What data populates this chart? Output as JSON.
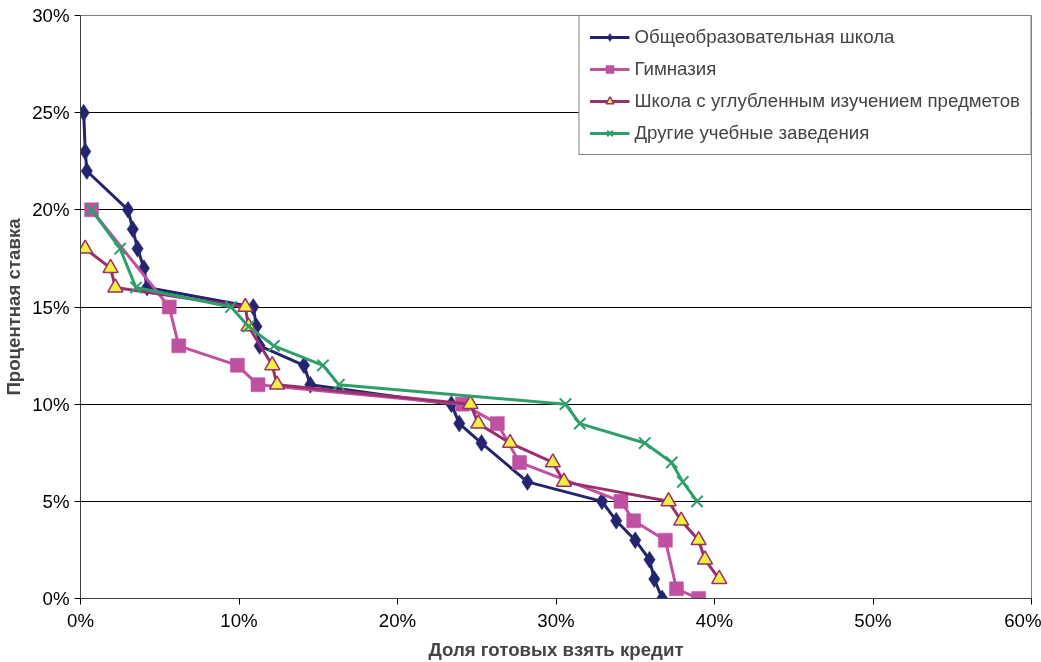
{
  "chart_data": {
    "type": "line",
    "xlabel": "Доля готовых взять кредит",
    "ylabel": "Процентная ставка",
    "xlim": [
      0,
      60
    ],
    "ylim": [
      0,
      30
    ],
    "xticks": [
      {
        "value": 0,
        "label": "0%"
      },
      {
        "value": 10,
        "label": "10%"
      },
      {
        "value": 20,
        "label": "20%"
      },
      {
        "value": 30,
        "label": "30%"
      },
      {
        "value": 40,
        "label": "40%"
      },
      {
        "value": 50,
        "label": "50%"
      },
      {
        "value": 60,
        "label": "60%"
      }
    ],
    "yticks": [
      {
        "value": 0,
        "label": "0%"
      },
      {
        "value": 5,
        "label": "5%"
      },
      {
        "value": 10,
        "label": "10%"
      },
      {
        "value": 15,
        "label": "15%"
      },
      {
        "value": 20,
        "label": "20%"
      },
      {
        "value": 25,
        "label": "25%"
      },
      {
        "value": 30,
        "label": "30%"
      }
    ],
    "grid": "y",
    "legend": "top right",
    "line_style": "solid",
    "series": [
      {
        "name": "Общеобразовательная школа",
        "color": "#25256f",
        "marker": "diamond",
        "x": [
          0.2,
          0.3,
          0.4,
          3.0,
          3.3,
          3.6,
          4.0,
          4.2,
          10.9,
          11.1,
          11.3,
          14.1,
          14.5,
          23.4,
          23.9,
          25.3,
          28.2,
          32.9,
          33.8,
          35.0,
          35.9,
          36.2,
          36.7
        ],
        "values": [
          25,
          23,
          22,
          20,
          19,
          18,
          17,
          16,
          15,
          14,
          13,
          12,
          11,
          10,
          9,
          8,
          6,
          5,
          4,
          3,
          2,
          1,
          0
        ]
      },
      {
        "name": "Гимназия",
        "color": "#c050a0",
        "marker": "square",
        "x": [
          0.7,
          5.6,
          6.2,
          9.9,
          11.2,
          24.1,
          26.3,
          27.7,
          34.1,
          34.9,
          36.9,
          37.6,
          39.0
        ],
        "values": [
          20,
          15,
          13,
          12,
          11,
          10,
          9,
          7,
          5,
          4,
          3,
          0.5,
          0
        ]
      },
      {
        "name": "Школа с углубленным изучением предметов",
        "color": "#9b2f6b",
        "marker": "triangle",
        "x": [
          0.3,
          1.9,
          2.2,
          10.4,
          10.6,
          12.1,
          12.4,
          24.6,
          25.1,
          27.1,
          29.8,
          30.5,
          37.1,
          37.9,
          39.0,
          39.4,
          40.3
        ],
        "values": [
          18,
          17,
          16,
          15,
          14,
          12,
          11,
          10,
          9,
          8,
          7,
          6,
          5,
          4,
          3,
          2,
          1
        ]
      },
      {
        "name": "Другие учебные заведения",
        "color": "#2e9e6b",
        "marker": "cross",
        "x": [
          0.7,
          2.5,
          3.5,
          9.5,
          10.6,
          12.2,
          15.3,
          16.3,
          30.6,
          31.5,
          35.6,
          37.3,
          38.0,
          38.9
        ],
        "values": [
          20,
          18,
          16,
          15,
          14,
          13,
          12,
          11,
          10,
          9,
          8,
          7,
          6,
          5
        ]
      }
    ]
  }
}
